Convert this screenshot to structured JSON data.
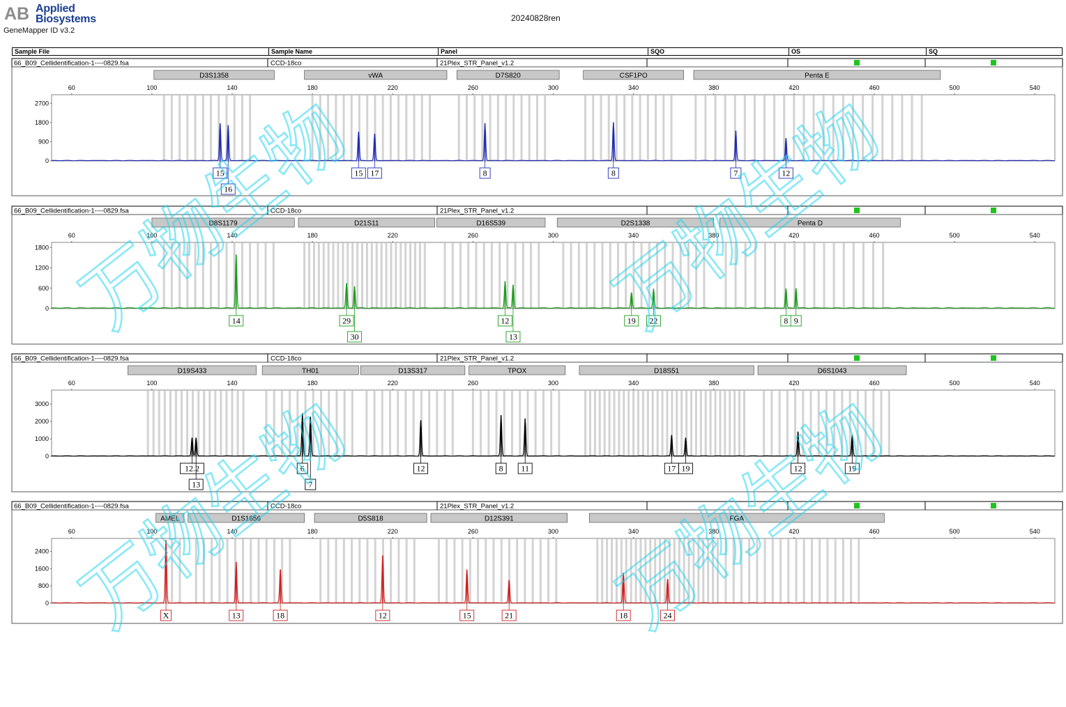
{
  "report": {
    "brand_line1": "Applied",
    "brand_line2": "Biosystems",
    "logo_mark": "AB",
    "software": "GeneMapper ID v3.2",
    "run_name": "20240828ren"
  },
  "table_header": [
    "Sample File",
    "Sample Name",
    "Panel",
    "SQO",
    "OS",
    "SQ"
  ],
  "colors": {
    "panel1": "#1f2bb5",
    "panel2": "#1a9b1a",
    "panel3": "#000000",
    "panel4": "#d01c1c",
    "quality_ok": "#1ec41e",
    "bin": "#d3d3d3",
    "marker": "#c8c8c8",
    "watermark": "#22d5f0"
  },
  "watermark": {
    "text": "万物生物"
  },
  "panels": [
    {
      "sample_file": "66_B09_Cellidentification-1----0829.fsa",
      "sample_name": "CCD-18co",
      "panel_name": "21Plex_STR_Panel_v1.2",
      "color_key": "panel1",
      "markers": [
        {
          "name": "D3S1358",
          "start": 101,
          "end": 161
        },
        {
          "name": "vWA",
          "start": 176,
          "end": 247
        },
        {
          "name": "D7S820",
          "start": 252,
          "end": 303
        },
        {
          "name": "CSF1PO",
          "start": 315,
          "end": 365
        },
        {
          "name": "Penta E",
          "start": 370,
          "end": 493
        }
      ],
      "x_ticks": [
        60,
        100,
        140,
        180,
        220,
        260,
        300,
        340,
        380,
        420,
        460,
        500,
        540
      ],
      "y_ticks": [
        0,
        900,
        1800,
        2700
      ],
      "y_max": 3100,
      "bins": [
        {
          "start": 106,
          "end": 152,
          "step": 3.9
        },
        {
          "start": 180,
          "end": 240,
          "step": 3.9
        },
        {
          "start": 253,
          "end": 299,
          "step": 3.9
        },
        {
          "start": 316,
          "end": 361,
          "step": 3.9
        },
        {
          "start": 371,
          "end": 488,
          "step": 4.9
        }
      ],
      "peaks": [
        {
          "x": 134,
          "h": 1750
        },
        {
          "x": 138,
          "h": 1650
        },
        {
          "x": 203,
          "h": 1350
        },
        {
          "x": 211,
          "h": 1250
        },
        {
          "x": 266,
          "h": 1750
        },
        {
          "x": 330,
          "h": 1800
        },
        {
          "x": 391,
          "h": 1400
        },
        {
          "x": 416,
          "h": 1050
        }
      ],
      "calls": [
        {
          "label": "15",
          "x": 134,
          "row": 0
        },
        {
          "label": "16",
          "x": 138,
          "row": 1
        },
        {
          "label": "15",
          "x": 203,
          "row": 0
        },
        {
          "label": "17",
          "x": 211,
          "row": 0
        },
        {
          "label": "8",
          "x": 266,
          "row": 0
        },
        {
          "label": "8",
          "x": 330,
          "row": 0
        },
        {
          "label": "7",
          "x": 391,
          "row": 0
        },
        {
          "label": "12",
          "x": 416,
          "row": 0
        }
      ]
    },
    {
      "sample_file": "66_B09_Cellidentification-1----0829.fsa",
      "sample_name": "CCD-18co",
      "panel_name": "21Plex_STR_Panel_v1.2",
      "color_key": "panel2",
      "markers": [
        {
          "name": "D8S1179",
          "start": 100,
          "end": 171
        },
        {
          "name": "D21S11",
          "start": 173,
          "end": 241
        },
        {
          "name": "D16S539",
          "start": 242,
          "end": 296
        },
        {
          "name": "D2S1338",
          "start": 302,
          "end": 380
        },
        {
          "name": "Penta D",
          "start": 383,
          "end": 473
        }
      ],
      "x_ticks": [
        60,
        100,
        140,
        180,
        220,
        260,
        300,
        340,
        380,
        420,
        460,
        500,
        540
      ],
      "y_ticks": [
        0,
        600,
        1200,
        1800
      ],
      "y_max": 1950,
      "bins": [
        {
          "start": 106,
          "end": 162,
          "step": 3.9
        },
        {
          "start": 176,
          "end": 237,
          "step": 2.4
        },
        {
          "start": 246,
          "end": 293,
          "step": 3.9
        },
        {
          "start": 305,
          "end": 378,
          "step": 3.9
        },
        {
          "start": 386,
          "end": 469,
          "step": 4.9
        }
      ],
      "peaks": [
        {
          "x": 142,
          "h": 1580
        },
        {
          "x": 197,
          "h": 730
        },
        {
          "x": 201,
          "h": 650
        },
        {
          "x": 276,
          "h": 790
        },
        {
          "x": 280,
          "h": 690
        },
        {
          "x": 339,
          "h": 460
        },
        {
          "x": 350,
          "h": 560
        },
        {
          "x": 416,
          "h": 570
        },
        {
          "x": 421,
          "h": 590
        }
      ],
      "calls": [
        {
          "label": "14",
          "x": 142,
          "row": 0
        },
        {
          "label": "29",
          "x": 197,
          "row": 0
        },
        {
          "label": "30",
          "x": 201,
          "row": 1
        },
        {
          "label": "12",
          "x": 276,
          "row": 0
        },
        {
          "label": "13",
          "x": 280,
          "row": 1
        },
        {
          "label": "19",
          "x": 339,
          "row": 0
        },
        {
          "label": "22",
          "x": 350,
          "row": 0
        },
        {
          "label": "8",
          "x": 416,
          "row": 0
        },
        {
          "label": "9",
          "x": 421,
          "row": 0
        }
      ]
    },
    {
      "sample_file": "66_B09_Cellidentification-1----0829.fsa",
      "sample_name": "CCD-18co",
      "panel_name": "21Plex_STR_Panel_v1.2",
      "color_key": "panel3",
      "markers": [
        {
          "name": "D19S433",
          "start": 88,
          "end": 152
        },
        {
          "name": "TH01",
          "start": 155,
          "end": 203
        },
        {
          "name": "D13S317",
          "start": 204,
          "end": 256
        },
        {
          "name": "TPOX",
          "start": 258,
          "end": 306
        },
        {
          "name": "D18S51",
          "start": 313,
          "end": 400
        },
        {
          "name": "D6S1043",
          "start": 402,
          "end": 476
        }
      ],
      "x_ticks": [
        60,
        100,
        140,
        180,
        220,
        260,
        300,
        340,
        380,
        420,
        460,
        500,
        540
      ],
      "y_ticks": [
        0,
        1000,
        2000,
        3000
      ],
      "y_max": 3800,
      "bins": [
        {
          "start": 98,
          "end": 146,
          "step": 2.8
        },
        {
          "start": 157,
          "end": 200,
          "step": 3.9
        },
        {
          "start": 207,
          "end": 251,
          "step": 3.9
        },
        {
          "start": 260,
          "end": 303,
          "step": 3.9
        },
        {
          "start": 316,
          "end": 396,
          "step": 2.4
        },
        {
          "start": 405,
          "end": 471,
          "step": 3.9
        }
      ],
      "peaks": [
        {
          "x": 120,
          "h": 1050
        },
        {
          "x": 122,
          "h": 1050
        },
        {
          "x": 175,
          "h": 2450
        },
        {
          "x": 179,
          "h": 2250
        },
        {
          "x": 234,
          "h": 2050
        },
        {
          "x": 274,
          "h": 2350
        },
        {
          "x": 286,
          "h": 2150
        },
        {
          "x": 359,
          "h": 1200
        },
        {
          "x": 366,
          "h": 1050
        },
        {
          "x": 422,
          "h": 1400
        },
        {
          "x": 449,
          "h": 1200
        }
      ],
      "calls": [
        {
          "label": "12.2",
          "x": 120,
          "row": 0
        },
        {
          "label": "13",
          "x": 122,
          "row": 1
        },
        {
          "label": "6",
          "x": 175,
          "row": 0
        },
        {
          "label": "7",
          "x": 179,
          "row": 1
        },
        {
          "label": "12",
          "x": 234,
          "row": 0
        },
        {
          "label": "8",
          "x": 274,
          "row": 0
        },
        {
          "label": "11",
          "x": 286,
          "row": 0
        },
        {
          "label": "17",
          "x": 359,
          "row": 0
        },
        {
          "label": "19",
          "x": 366,
          "row": 0
        },
        {
          "label": "12",
          "x": 422,
          "row": 0
        },
        {
          "label": "19",
          "x": 449,
          "row": 0
        }
      ]
    },
    {
      "sample_file": "66_B09_Cellidentification-1----0829.fsa",
      "sample_name": "CCD-18co",
      "panel_name": "21Plex_STR_Panel_v1.2",
      "color_key": "panel4",
      "markers": [
        {
          "name": "AMEL",
          "start": 102,
          "end": 116
        },
        {
          "name": "D1S1656",
          "start": 118,
          "end": 176
        },
        {
          "name": "D5S818",
          "start": 181,
          "end": 237
        },
        {
          "name": "D12S391",
          "start": 239,
          "end": 307
        },
        {
          "name": "FGA",
          "start": 318,
          "end": 465
        }
      ],
      "x_ticks": [
        60,
        100,
        140,
        180,
        220,
        260,
        300,
        340,
        380,
        420,
        460,
        500,
        540
      ],
      "x_tick_labels": [
        "60",
        "100",
        "140",
        "180",
        "220",
        "260",
        "300",
        "340",
        "380",
        "420",
        "460",
        "500",
        "540"
      ],
      "y_ticks": [
        0,
        800,
        1600,
        2400
      ],
      "y_max": 3000,
      "bins": [
        {
          "start": 110,
          "end": 115,
          "step": 3.9
        },
        {
          "start": 122,
          "end": 172,
          "step": 3.9
        },
        {
          "start": 184,
          "end": 232,
          "step": 3.9
        },
        {
          "start": 243,
          "end": 302,
          "step": 3.9
        },
        {
          "start": 322,
          "end": 382,
          "step": 2.4
        },
        {
          "start": 386,
          "end": 456,
          "step": 3.9
        }
      ],
      "peaks": [
        {
          "x": 107,
          "h": 2900
        },
        {
          "x": 142,
          "h": 1900
        },
        {
          "x": 164,
          "h": 1550
        },
        {
          "x": 215,
          "h": 2200
        },
        {
          "x": 257,
          "h": 1550
        },
        {
          "x": 278,
          "h": 1050
        },
        {
          "x": 335,
          "h": 1400
        },
        {
          "x": 357,
          "h": 1100
        }
      ],
      "calls": [
        {
          "label": "X",
          "x": 107,
          "row": 0
        },
        {
          "label": "13",
          "x": 142,
          "row": 0
        },
        {
          "label": "18",
          "x": 164,
          "row": 0
        },
        {
          "label": "12",
          "x": 215,
          "row": 0
        },
        {
          "label": "15",
          "x": 257,
          "row": 0
        },
        {
          "label": "21",
          "x": 278,
          "row": 0
        },
        {
          "label": "18",
          "x": 335,
          "row": 0
        },
        {
          "label": "24",
          "x": 357,
          "row": 0
        }
      ]
    }
  ],
  "chart_data": [
    {
      "type": "line",
      "title": "",
      "xlabel": "",
      "ylabel": "",
      "xlim": [
        50,
        550
      ],
      "ylim": [
        0,
        3100
      ],
      "x_ticks": [
        60,
        100,
        140,
        180,
        220,
        260,
        300,
        340,
        380,
        420,
        460,
        500,
        540
      ],
      "y_ticks": [
        0,
        900,
        1800,
        2700
      ],
      "series": [
        {
          "x": [
            134,
            138,
            203,
            211,
            266,
            330,
            391,
            416
          ],
          "values": [
            1750,
            1650,
            1350,
            1250,
            1750,
            1800,
            1400,
            1050
          ]
        }
      ],
      "allele_calls": [
        "15",
        "16",
        "15",
        "17",
        "8",
        "8",
        "7",
        "12"
      ],
      "markers": [
        "D3S1358",
        "vWA",
        "D7S820",
        "CSF1PO",
        "Penta E"
      ],
      "grid": false
    },
    {
      "type": "line",
      "title": "",
      "xlabel": "",
      "ylabel": "",
      "xlim": [
        50,
        550
      ],
      "ylim": [
        0,
        1950
      ],
      "x_ticks": [
        60,
        100,
        140,
        180,
        220,
        260,
        300,
        340,
        380,
        420,
        460,
        500,
        540
      ],
      "y_ticks": [
        0,
        600,
        1200,
        1800
      ],
      "series": [
        {
          "x": [
            142,
            197,
            201,
            276,
            280,
            339,
            350,
            416,
            421
          ],
          "values": [
            1580,
            730,
            650,
            790,
            690,
            460,
            560,
            570,
            590
          ]
        }
      ],
      "allele_calls": [
        "14",
        "29",
        "30",
        "12",
        "13",
        "19",
        "22",
        "8",
        "9"
      ],
      "markers": [
        "D8S1179",
        "D21S11",
        "D16S539",
        "D2S1338",
        "Penta D"
      ],
      "grid": false
    },
    {
      "type": "line",
      "title": "",
      "xlabel": "",
      "ylabel": "",
      "xlim": [
        50,
        550
      ],
      "ylim": [
        0,
        3800
      ],
      "x_ticks": [
        60,
        100,
        140,
        180,
        220,
        260,
        300,
        340,
        380,
        420,
        460,
        500,
        540
      ],
      "y_ticks": [
        0,
        1000,
        2000,
        3000
      ],
      "series": [
        {
          "x": [
            120,
            122,
            175,
            179,
            234,
            274,
            286,
            359,
            366,
            422,
            449
          ],
          "values": [
            1050,
            1050,
            2450,
            2250,
            2050,
            2350,
            2150,
            1200,
            1050,
            1400,
            1200
          ]
        }
      ],
      "allele_calls": [
        "12.2",
        "13",
        "6",
        "7",
        "12",
        "8",
        "11",
        "17",
        "19",
        "12",
        "19"
      ],
      "markers": [
        "D19S433",
        "TH01",
        "D13S317",
        "TPOX",
        "D18S51",
        "D6S1043"
      ],
      "grid": false
    },
    {
      "type": "line",
      "title": "",
      "xlabel": "",
      "ylabel": "",
      "xlim": [
        50,
        550
      ],
      "ylim": [
        0,
        3000
      ],
      "x_ticks": [
        60,
        100,
        140,
        180,
        220,
        260,
        300,
        340,
        380,
        420,
        460,
        500,
        540
      ],
      "y_ticks": [
        0,
        800,
        1600,
        2400
      ],
      "series": [
        {
          "x": [
            107,
            142,
            164,
            215,
            257,
            278,
            335,
            357
          ],
          "values": [
            2900,
            1900,
            1550,
            2200,
            1550,
            1050,
            1400,
            1100
          ]
        }
      ],
      "allele_calls": [
        "X",
        "13",
        "18",
        "12",
        "15",
        "21",
        "18",
        "24"
      ],
      "markers": [
        "AMEL",
        "D1S1656",
        "D5S818",
        "D12S391",
        "FGA"
      ],
      "grid": false
    }
  ]
}
